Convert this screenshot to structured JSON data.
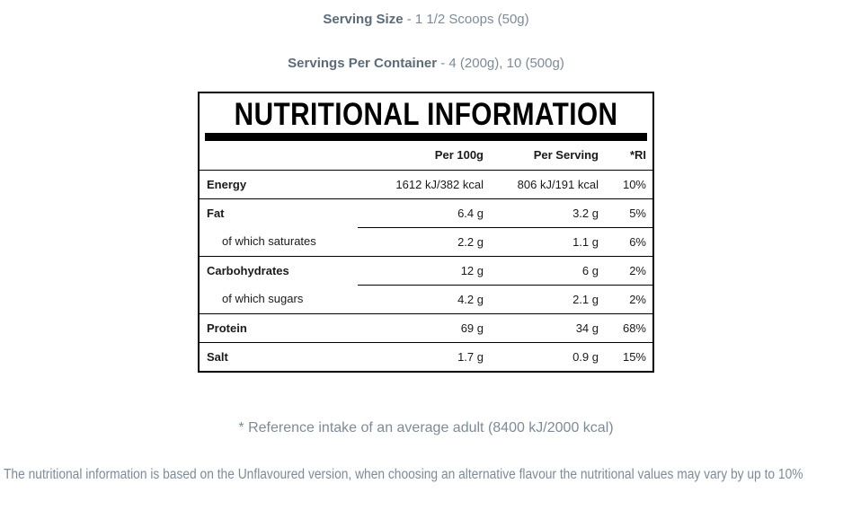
{
  "serving": {
    "size_label": "Serving Size",
    "size_value": " - 1 1/2 Scoops (50g)",
    "per_container_label": "Servings Per Container",
    "per_container_value": " - 4 (200g), 10 (500g)"
  },
  "table": {
    "title": "NUTRITIONAL INFORMATION",
    "columns": [
      "Per 100g",
      "Per Serving",
      "*RI"
    ],
    "rows": [
      {
        "label": "Energy",
        "indent": false,
        "per_100g": "1612 kJ/382 kcal",
        "per_serving": "806 kJ/191 kcal",
        "ri": "10%",
        "divider": "full"
      },
      {
        "label": "Fat",
        "indent": false,
        "per_100g": "6.4 g",
        "per_serving": "3.2 g",
        "ri": "5%",
        "divider": "partial"
      },
      {
        "label": "of which saturates",
        "indent": true,
        "per_100g": "2.2 g",
        "per_serving": "1.1 g",
        "ri": "6%",
        "divider": "full"
      },
      {
        "label": "Carbohydrates",
        "indent": false,
        "per_100g": "12 g",
        "per_serving": "6 g",
        "ri": "2%",
        "divider": "partial"
      },
      {
        "label": "of which sugars",
        "indent": true,
        "per_100g": "4.2 g",
        "per_serving": "2.1 g",
        "ri": "2%",
        "divider": "full"
      },
      {
        "label": "Protein",
        "indent": false,
        "per_100g": "69 g",
        "per_serving": "34 g",
        "ri": "68%",
        "divider": "full"
      },
      {
        "label": "Salt",
        "indent": false,
        "per_100g": "1.7 g",
        "per_serving": "0.9 g",
        "ri": "15%",
        "divider": "none"
      }
    ]
  },
  "notes": {
    "reference": "* Reference intake of an average adult (8400 kJ/2000 kcal)",
    "disclaimer": "The nutritional information is based on the Unflavoured version, when choosing an alternative flavour the nutritional values may vary by up to 10%"
  },
  "colors": {
    "heading_bold": "#5c6b7a",
    "heading": "#7d8b99",
    "table_text": "#1a1a1a",
    "black": "#000000"
  }
}
